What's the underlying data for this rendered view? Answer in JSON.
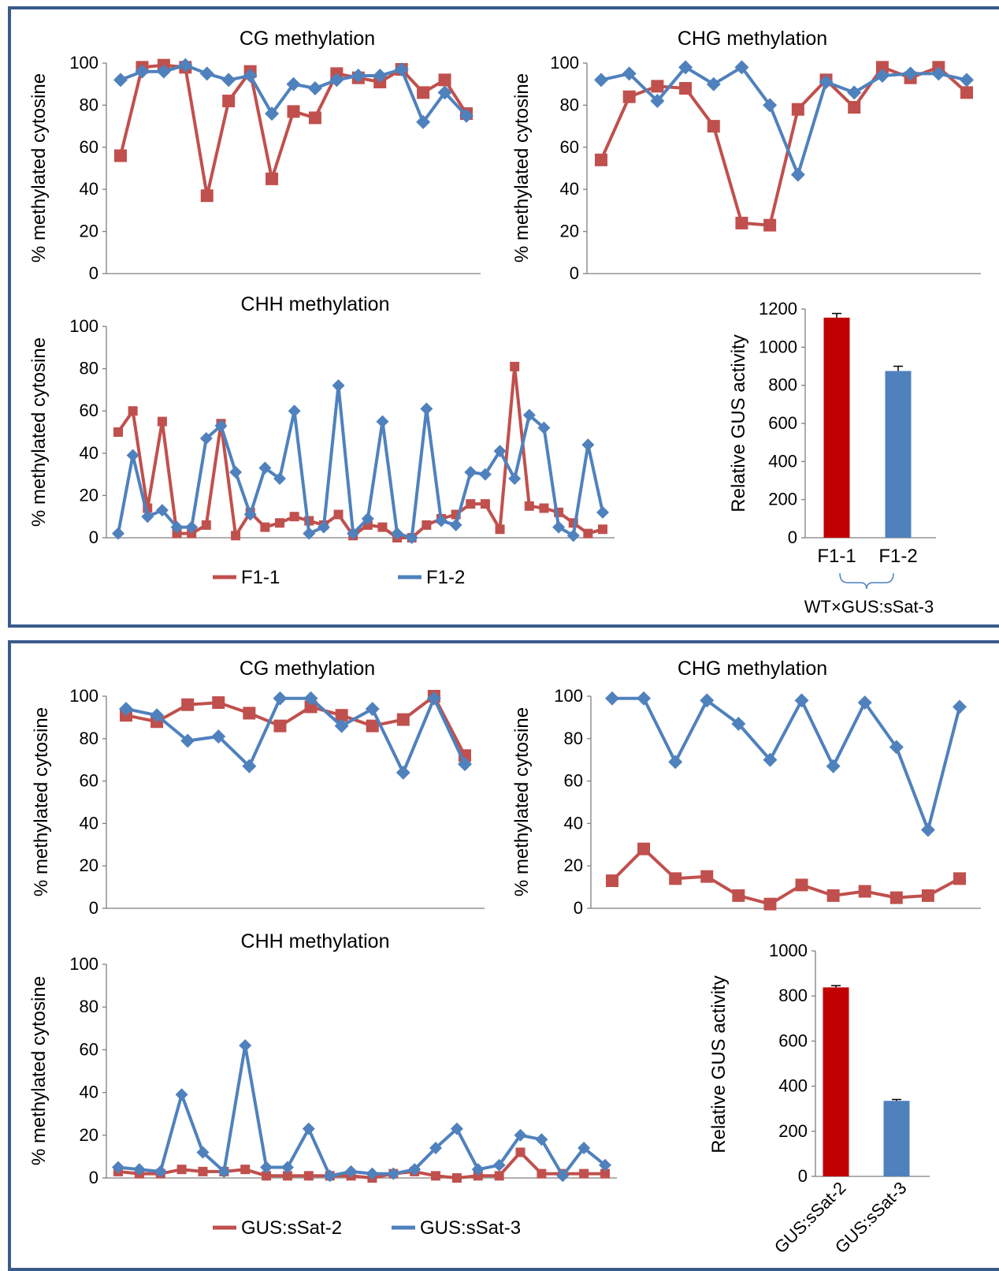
{
  "colors": {
    "red": "#c0504d",
    "blue": "#4f81bd",
    "bar_red": "#c00000",
    "bar_blue": "#4f81bd",
    "axis": "#7f7f7f",
    "frame": "#3a5a8c"
  },
  "y_axis_label": "% methylated cytosine",
  "gus_axis_label": "Relative GUS activity",
  "chart_data": [
    {
      "id": "top-cg",
      "type": "line",
      "title": "CG methylation",
      "ylabel": "% methylated cytosine",
      "ylim": [
        0,
        100
      ],
      "yticks": [
        0,
        20,
        40,
        60,
        80,
        100
      ],
      "series": [
        {
          "name": "F1-1",
          "color": "#c0504d",
          "marker": "square",
          "values": [
            56,
            98,
            99,
            98,
            37,
            82,
            96,
            45,
            77,
            74,
            95,
            93,
            91,
            97,
            86,
            92,
            76
          ]
        },
        {
          "name": "F1-2",
          "color": "#4f81bd",
          "marker": "diamond",
          "values": [
            92,
            96,
            96,
            99,
            95,
            92,
            94,
            76,
            90,
            88,
            92,
            94,
            94,
            97,
            72,
            86,
            75
          ]
        }
      ]
    },
    {
      "id": "top-chg",
      "type": "line",
      "title": "CHG methylation",
      "ylabel": "% methylated cytosine",
      "ylim": [
        0,
        100
      ],
      "yticks": [
        0,
        20,
        40,
        60,
        80,
        100
      ],
      "series": [
        {
          "name": "F1-1",
          "color": "#c0504d",
          "marker": "square",
          "values": [
            54,
            84,
            89,
            88,
            70,
            24,
            23,
            78,
            92,
            79,
            98,
            93,
            98,
            86
          ]
        },
        {
          "name": "F1-2",
          "color": "#4f81bd",
          "marker": "diamond",
          "values": [
            92,
            95,
            82,
            98,
            90,
            98,
            80,
            47,
            91,
            86,
            94,
            95,
            95,
            92
          ]
        }
      ]
    },
    {
      "id": "top-chh",
      "type": "line",
      "title": "CHH methylation",
      "ylabel": "% methylated cytosine",
      "ylim": [
        0,
        100
      ],
      "yticks": [
        0,
        20,
        40,
        60,
        80,
        100
      ],
      "series": [
        {
          "name": "F1-1",
          "color": "#c0504d",
          "marker": "square",
          "values": [
            50,
            60,
            14,
            55,
            2,
            2,
            6,
            54,
            1,
            12,
            5,
            7,
            10,
            8,
            6,
            11,
            1,
            6,
            5,
            0,
            0,
            6,
            9,
            11,
            16,
            16,
            4,
            81,
            15,
            14,
            12,
            7,
            2,
            4
          ]
        },
        {
          "name": "F1-2",
          "color": "#4f81bd",
          "marker": "diamond",
          "values": [
            2,
            39,
            10,
            13,
            5,
            5,
            47,
            53,
            31,
            11,
            33,
            28,
            60,
            2,
            5,
            72,
            2,
            9,
            55,
            2,
            0,
            61,
            8,
            6,
            31,
            30,
            41,
            28,
            58,
            52,
            5,
            1,
            44,
            12
          ]
        }
      ]
    },
    {
      "id": "top-gus",
      "type": "bar",
      "ylabel": "Relative GUS activity",
      "ylim": [
        0,
        1200
      ],
      "yticks": [
        0,
        200,
        400,
        600,
        800,
        1000,
        1200
      ],
      "categories": [
        "F1-1",
        "F1-2"
      ],
      "values": [
        1155,
        875
      ],
      "errors": [
        22,
        25
      ],
      "colors": [
        "#c00000",
        "#4f81bd"
      ],
      "group_label": "WT×GUS:sSat-3"
    },
    {
      "id": "bottom-cg",
      "type": "line",
      "title": "CG methylation",
      "ylabel": "% methylated cytosine",
      "ylim": [
        0,
        100
      ],
      "yticks": [
        0,
        20,
        40,
        60,
        80,
        100
      ],
      "series": [
        {
          "name": "GUS:sSat-2",
          "color": "#c0504d",
          "marker": "square",
          "values": [
            91,
            88,
            96,
            97,
            92,
            86,
            95,
            91,
            86,
            89,
            100,
            72
          ]
        },
        {
          "name": "GUS:sSat-3",
          "color": "#4f81bd",
          "marker": "diamond",
          "values": [
            94,
            91,
            79,
            81,
            67,
            99,
            99,
            86,
            94,
            64,
            99,
            68
          ]
        }
      ]
    },
    {
      "id": "bottom-chg",
      "type": "line",
      "title": "CHG methylation",
      "ylabel": "% methylated cytosine",
      "ylim": [
        0,
        100
      ],
      "yticks": [
        0,
        20,
        40,
        60,
        80,
        100
      ],
      "series": [
        {
          "name": "GUS:sSat-2",
          "color": "#c0504d",
          "marker": "square",
          "values": [
            13,
            28,
            14,
            15,
            6,
            2,
            11,
            6,
            8,
            5,
            6,
            14
          ]
        },
        {
          "name": "GUS:sSat-3",
          "color": "#4f81bd",
          "marker": "diamond",
          "values": [
            99,
            99,
            69,
            98,
            87,
            70,
            98,
            67,
            97,
            76,
            37,
            95
          ]
        }
      ]
    },
    {
      "id": "bottom-chh",
      "type": "line",
      "title": "CHH methylation",
      "ylabel": "% methylated cytosine",
      "ylim": [
        0,
        100
      ],
      "yticks": [
        0,
        20,
        40,
        60,
        80,
        100
      ],
      "series": [
        {
          "name": "GUS:sSat-2",
          "color": "#c0504d",
          "marker": "square",
          "values": [
            3,
            2,
            2,
            4,
            3,
            3,
            4,
            1,
            1,
            1,
            1,
            1,
            0,
            2,
            3,
            1,
            0,
            1,
            1,
            12,
            2,
            2,
            2,
            2
          ]
        },
        {
          "name": "GUS:sSat-3",
          "color": "#4f81bd",
          "marker": "diamond",
          "values": [
            5,
            4,
            3,
            39,
            12,
            3,
            62,
            5,
            5,
            23,
            1,
            3,
            2,
            2,
            4,
            14,
            23,
            4,
            6,
            20,
            18,
            1,
            14,
            6
          ]
        }
      ]
    },
    {
      "id": "bottom-gus",
      "type": "bar",
      "ylabel": "Relative GUS activity",
      "ylim": [
        0,
        1000
      ],
      "yticks": [
        0,
        200,
        400,
        600,
        800,
        1000
      ],
      "categories": [
        "GUS:sSat-2",
        "GUS:sSat-3"
      ],
      "values": [
        838,
        335
      ],
      "errors": [
        8,
        6
      ],
      "colors": [
        "#c00000",
        "#4f81bd"
      ]
    }
  ],
  "legends": [
    {
      "id": "top-legend",
      "items": [
        {
          "label": "F1-1",
          "color": "#c0504d"
        },
        {
          "label": "F1-2",
          "color": "#4f81bd"
        }
      ]
    },
    {
      "id": "bottom-legend",
      "items": [
        {
          "label": "GUS:sSat-2",
          "color": "#c0504d"
        },
        {
          "label": "GUS:sSat-3",
          "color": "#4f81bd"
        }
      ]
    }
  ]
}
